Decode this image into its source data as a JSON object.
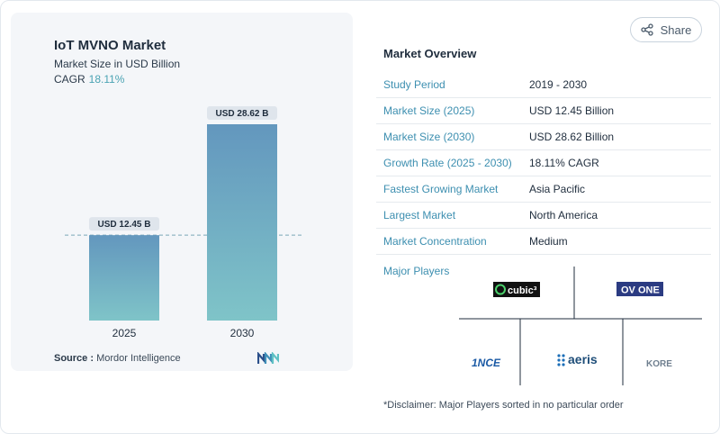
{
  "chart": {
    "title": "IoT MVNO Market",
    "subtitle": "Market Size in USD Billion",
    "cagr_label": "CAGR",
    "cagr_value": "18.11%",
    "source_label": "Source :",
    "source_value": "Mordor Intelligence"
  },
  "chart_data": {
    "type": "bar",
    "categories": [
      "2025",
      "2030"
    ],
    "values": [
      12.45,
      28.62
    ],
    "data_labels": [
      "USD 12.45 B",
      "USD 28.62 B"
    ],
    "title": "IoT MVNO Market",
    "subtitle": "Market Size in USD Billion",
    "ylim": [
      0,
      28.62
    ],
    "reference_line": 12.45,
    "colors": {
      "bar_top": "#6397be",
      "bar_bottom": "#7fc4c8",
      "label_bg": "#dfe5ec",
      "reference_line": "#7aa8b8"
    }
  },
  "share": {
    "label": "Share",
    "icon": "share-icon"
  },
  "overview": {
    "title": "Market Overview",
    "rows": [
      {
        "key": "Study Period",
        "value": "2019 - 2030"
      },
      {
        "key": "Market Size (2025)",
        "value": "USD 12.45 Billion"
      },
      {
        "key": "Market Size (2030)",
        "value": "USD 28.62 Billion"
      },
      {
        "key": "Growth Rate (2025 - 2030)",
        "value": "18.11% CAGR"
      },
      {
        "key": "Fastest Growing Market",
        "value": "Asia Pacific"
      },
      {
        "key": "Largest Market",
        "value": "North America"
      },
      {
        "key": "Market Concentration",
        "value": "Medium"
      }
    ]
  },
  "players": {
    "label": "Major Players",
    "logos": [
      "cubic³",
      "OV ONE",
      "1NCE",
      "aeris",
      "KORE"
    ]
  },
  "disclaimer": "*Disclaimer: Major Players sorted in no particular order",
  "colors": {
    "accent": "#3d8fb0",
    "text": "#1f2d3d"
  }
}
